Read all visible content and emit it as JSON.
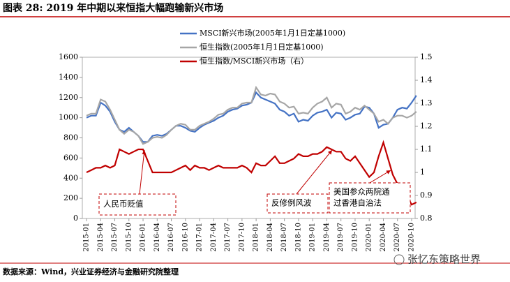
{
  "chart_data": {
    "type": "line",
    "title": "图表 28:  2019 年中期以来恒指大幅跑输新兴市场",
    "source": "数据来源：Wind，兴业证券经济与金融研究院整理",
    "watermark": "张忆东策略世界",
    "categories": [
      "2015-01",
      null,
      null,
      "2015-04",
      null,
      null,
      "2015-07",
      null,
      null,
      "2015-10",
      null,
      null,
      "2016-01",
      null,
      null,
      "2016-04",
      null,
      null,
      "2016-07",
      null,
      null,
      "2016-10",
      null,
      null,
      "2017-01",
      null,
      null,
      "2017-04",
      null,
      null,
      "2017-07",
      null,
      null,
      "2017-10",
      null,
      null,
      "2018-01",
      null,
      null,
      "2018-04",
      null,
      null,
      "2018-07",
      null,
      null,
      "2018-10",
      null,
      null,
      "2019-01",
      null,
      null,
      "2019-04",
      null,
      null,
      "2019-07",
      null,
      null,
      "2019-10",
      null,
      null,
      "2020-01",
      null,
      null,
      "2020-04",
      null,
      null,
      "2020-07",
      null,
      null,
      "2020-10",
      null
    ],
    "series": [
      {
        "name": "MSCI新兴市场(2005年1月1日定基1000)",
        "color": "#4472c4",
        "axis": "y",
        "values": [
          1000,
          1020,
          1020,
          1150,
          1120,
          1060,
          960,
          880,
          860,
          900,
          860,
          820,
          760,
          760,
          820,
          830,
          820,
          840,
          880,
          920,
          920,
          900,
          870,
          860,
          900,
          930,
          950,
          970,
          1000,
          1020,
          1060,
          1080,
          1090,
          1120,
          1130,
          1150,
          1250,
          1200,
          1180,
          1160,
          1140,
          1080,
          1060,
          1020,
          1040,
          960,
          980,
          970,
          1020,
          1050,
          1060,
          1080,
          1000,
          1050,
          1040,
          980,
          1000,
          1030,
          1040,
          1110,
          1100,
          1040,
          900,
          930,
          940,
          1000,
          1080,
          1100,
          1090,
          1150,
          1220
        ]
      },
      {
        "name": "恒生指数(2005年1月1日定基1000)",
        "color": "#a6a6a6",
        "axis": "y",
        "values": [
          1020,
          1040,
          1040,
          1180,
          1160,
          1080,
          980,
          880,
          840,
          880,
          860,
          820,
          740,
          760,
          800,
          810,
          800,
          830,
          880,
          920,
          940,
          930,
          880,
          880,
          920,
          940,
          960,
          990,
          1030,
          1040,
          1080,
          1100,
          1100,
          1140,
          1150,
          1150,
          1300,
          1230,
          1220,
          1240,
          1230,
          1160,
          1140,
          1100,
          1110,
          1040,
          1050,
          1040,
          1100,
          1140,
          1160,
          1200,
          1100,
          1140,
          1130,
          1040,
          1060,
          1100,
          1080,
          1120,
          1080,
          1040,
          960,
          980,
          940,
          1000,
          1020,
          1020,
          1000,
          1020,
          1060
        ]
      },
      {
        "name": "恒生指数/MSCI新兴市场（右）",
        "color": "#c00000",
        "axis": "y2",
        "values": [
          1.0,
          1.01,
          1.02,
          1.02,
          1.03,
          1.02,
          1.03,
          1.1,
          1.09,
          1.08,
          1.09,
          1.1,
          1.1,
          1.05,
          1.0,
          1.0,
          1.0,
          1.0,
          1.0,
          1.01,
          1.02,
          1.03,
          1.01,
          1.03,
          1.02,
          1.02,
          1.01,
          1.02,
          1.03,
          1.02,
          1.02,
          1.02,
          1.02,
          1.03,
          1.02,
          1.0,
          1.04,
          1.03,
          1.03,
          1.05,
          1.07,
          1.04,
          1.04,
          1.05,
          1.06,
          1.08,
          1.07,
          1.07,
          1.08,
          1.08,
          1.09,
          1.11,
          1.1,
          1.09,
          1.09,
          1.06,
          1.05,
          1.07,
          1.04,
          1.01,
          0.98,
          1.0,
          1.07,
          1.13,
          1.06,
          0.99,
          0.95,
          0.92,
          0.9,
          0.86,
          0.87
        ]
      }
    ],
    "ylim": [
      0,
      1600
    ],
    "yticks": [
      0,
      200,
      400,
      600,
      800,
      1000,
      1200,
      1400,
      1600
    ],
    "y2lim": [
      0.8,
      1.5
    ],
    "y2ticks": [
      0.8,
      0.9,
      1,
      1.1,
      1.2,
      1.3,
      1.4,
      1.5
    ],
    "annotations": [
      {
        "text": [
          "人民币贬值"
        ]
      },
      {
        "text": [
          "反修例风波"
        ]
      },
      {
        "text": [
          "美国参众两院通",
          "过香港自治法"
        ]
      }
    ]
  }
}
